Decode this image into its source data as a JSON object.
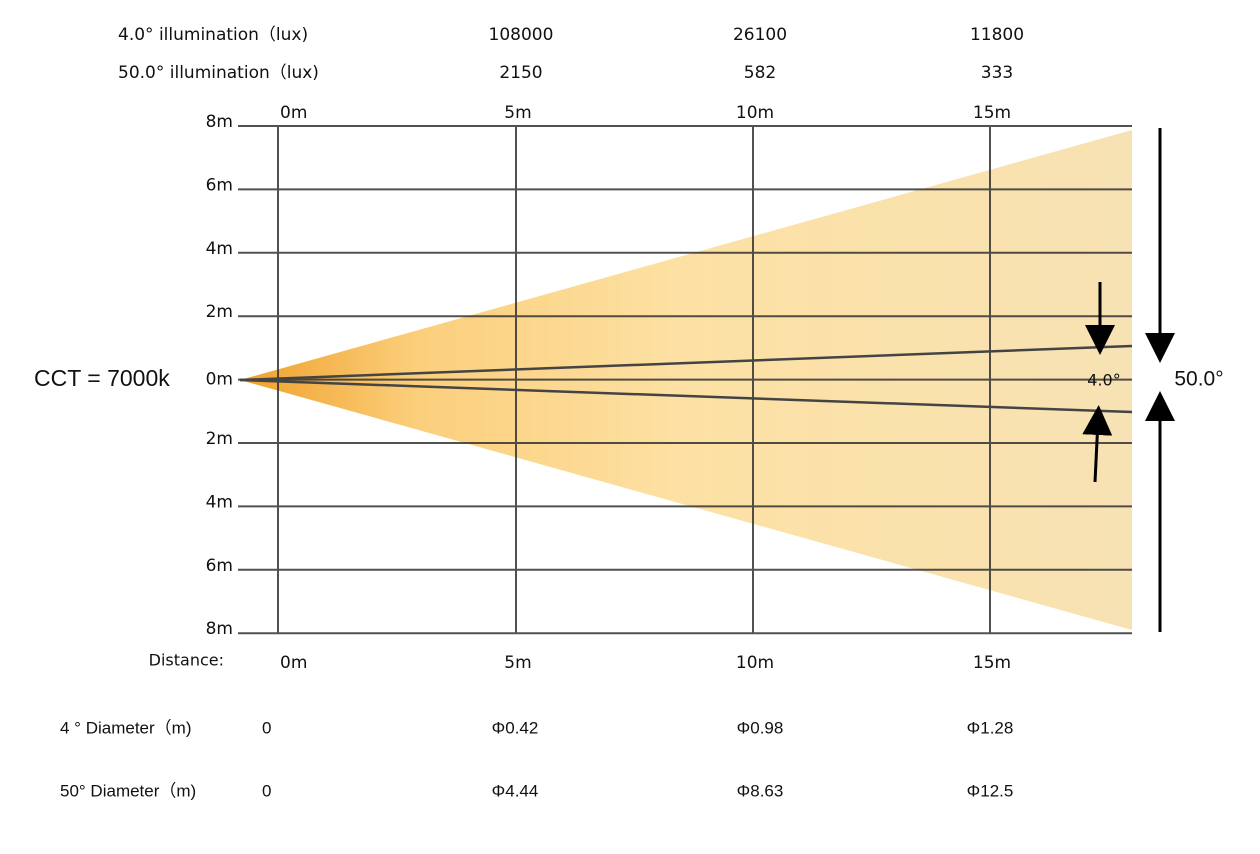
{
  "illumination": [
    {
      "label": "4.0°  illumination（lux)",
      "values": [
        "108000",
        "26100",
        "11800"
      ]
    },
    {
      "label": "50.0° illumination（lux)",
      "values": [
        "2150",
        "582",
        "333"
      ]
    }
  ],
  "top_axis": [
    "0m",
    "5m",
    "10m",
    "15m"
  ],
  "left_axis": [
    "8m",
    "6m",
    "4m",
    "2m",
    "0m",
    "2m",
    "4m",
    "6m",
    "8m"
  ],
  "cct": "CCT = 7000k",
  "angles": {
    "narrow": "4.0°",
    "wide": "50.0°"
  },
  "distance": {
    "label": "Distance:",
    "values": [
      "0m",
      "5m",
      "10m",
      "15m"
    ]
  },
  "diameters": [
    {
      "label": "4 °  Diameter（m)",
      "values": [
        "0",
        "Φ0.42",
        "Φ0.98",
        "Φ1.28"
      ]
    },
    {
      "label": "50° Diameter（m)",
      "values": [
        "0",
        "Φ4.44",
        "Φ8.63",
        "Φ12.5"
      ]
    }
  ]
}
